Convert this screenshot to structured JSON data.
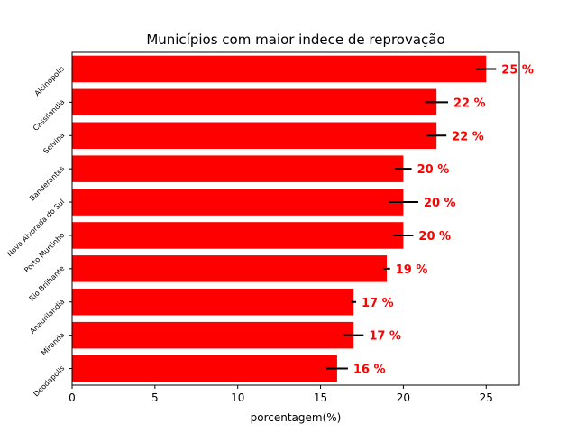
{
  "chart_data": {
    "type": "bar",
    "orientation": "horizontal",
    "title": "Municípios com maior indece de reprovação",
    "xlabel": "porcentagem(%)",
    "ylabel": "",
    "xlim": [
      0,
      27
    ],
    "x_ticks": [
      "0",
      "5",
      "10",
      "15",
      "20",
      "25"
    ],
    "bar_color": "#ff0000",
    "errorbar_color": "#000000",
    "grid": false,
    "categories": [
      "Alcinopolis",
      "Cassilandia",
      "Selvina",
      "Banderantes",
      "Nova Alvorada do Sul",
      "Porto Murtinho",
      "Rio Brilhante",
      "Anaurilandia",
      "Miranda",
      "Deodapolis"
    ],
    "values": [
      25,
      22,
      22,
      20,
      20,
      20,
      19,
      17,
      17,
      16
    ],
    "errors": [
      0.6,
      0.7,
      0.6,
      0.5,
      0.9,
      0.6,
      0.2,
      0.15,
      0.6,
      0.65
    ],
    "data_labels": [
      "25 %",
      "22 %",
      "22 %",
      "20 %",
      "20 %",
      "20 %",
      "19 %",
      "17 %",
      "17 %",
      "16 %"
    ]
  }
}
